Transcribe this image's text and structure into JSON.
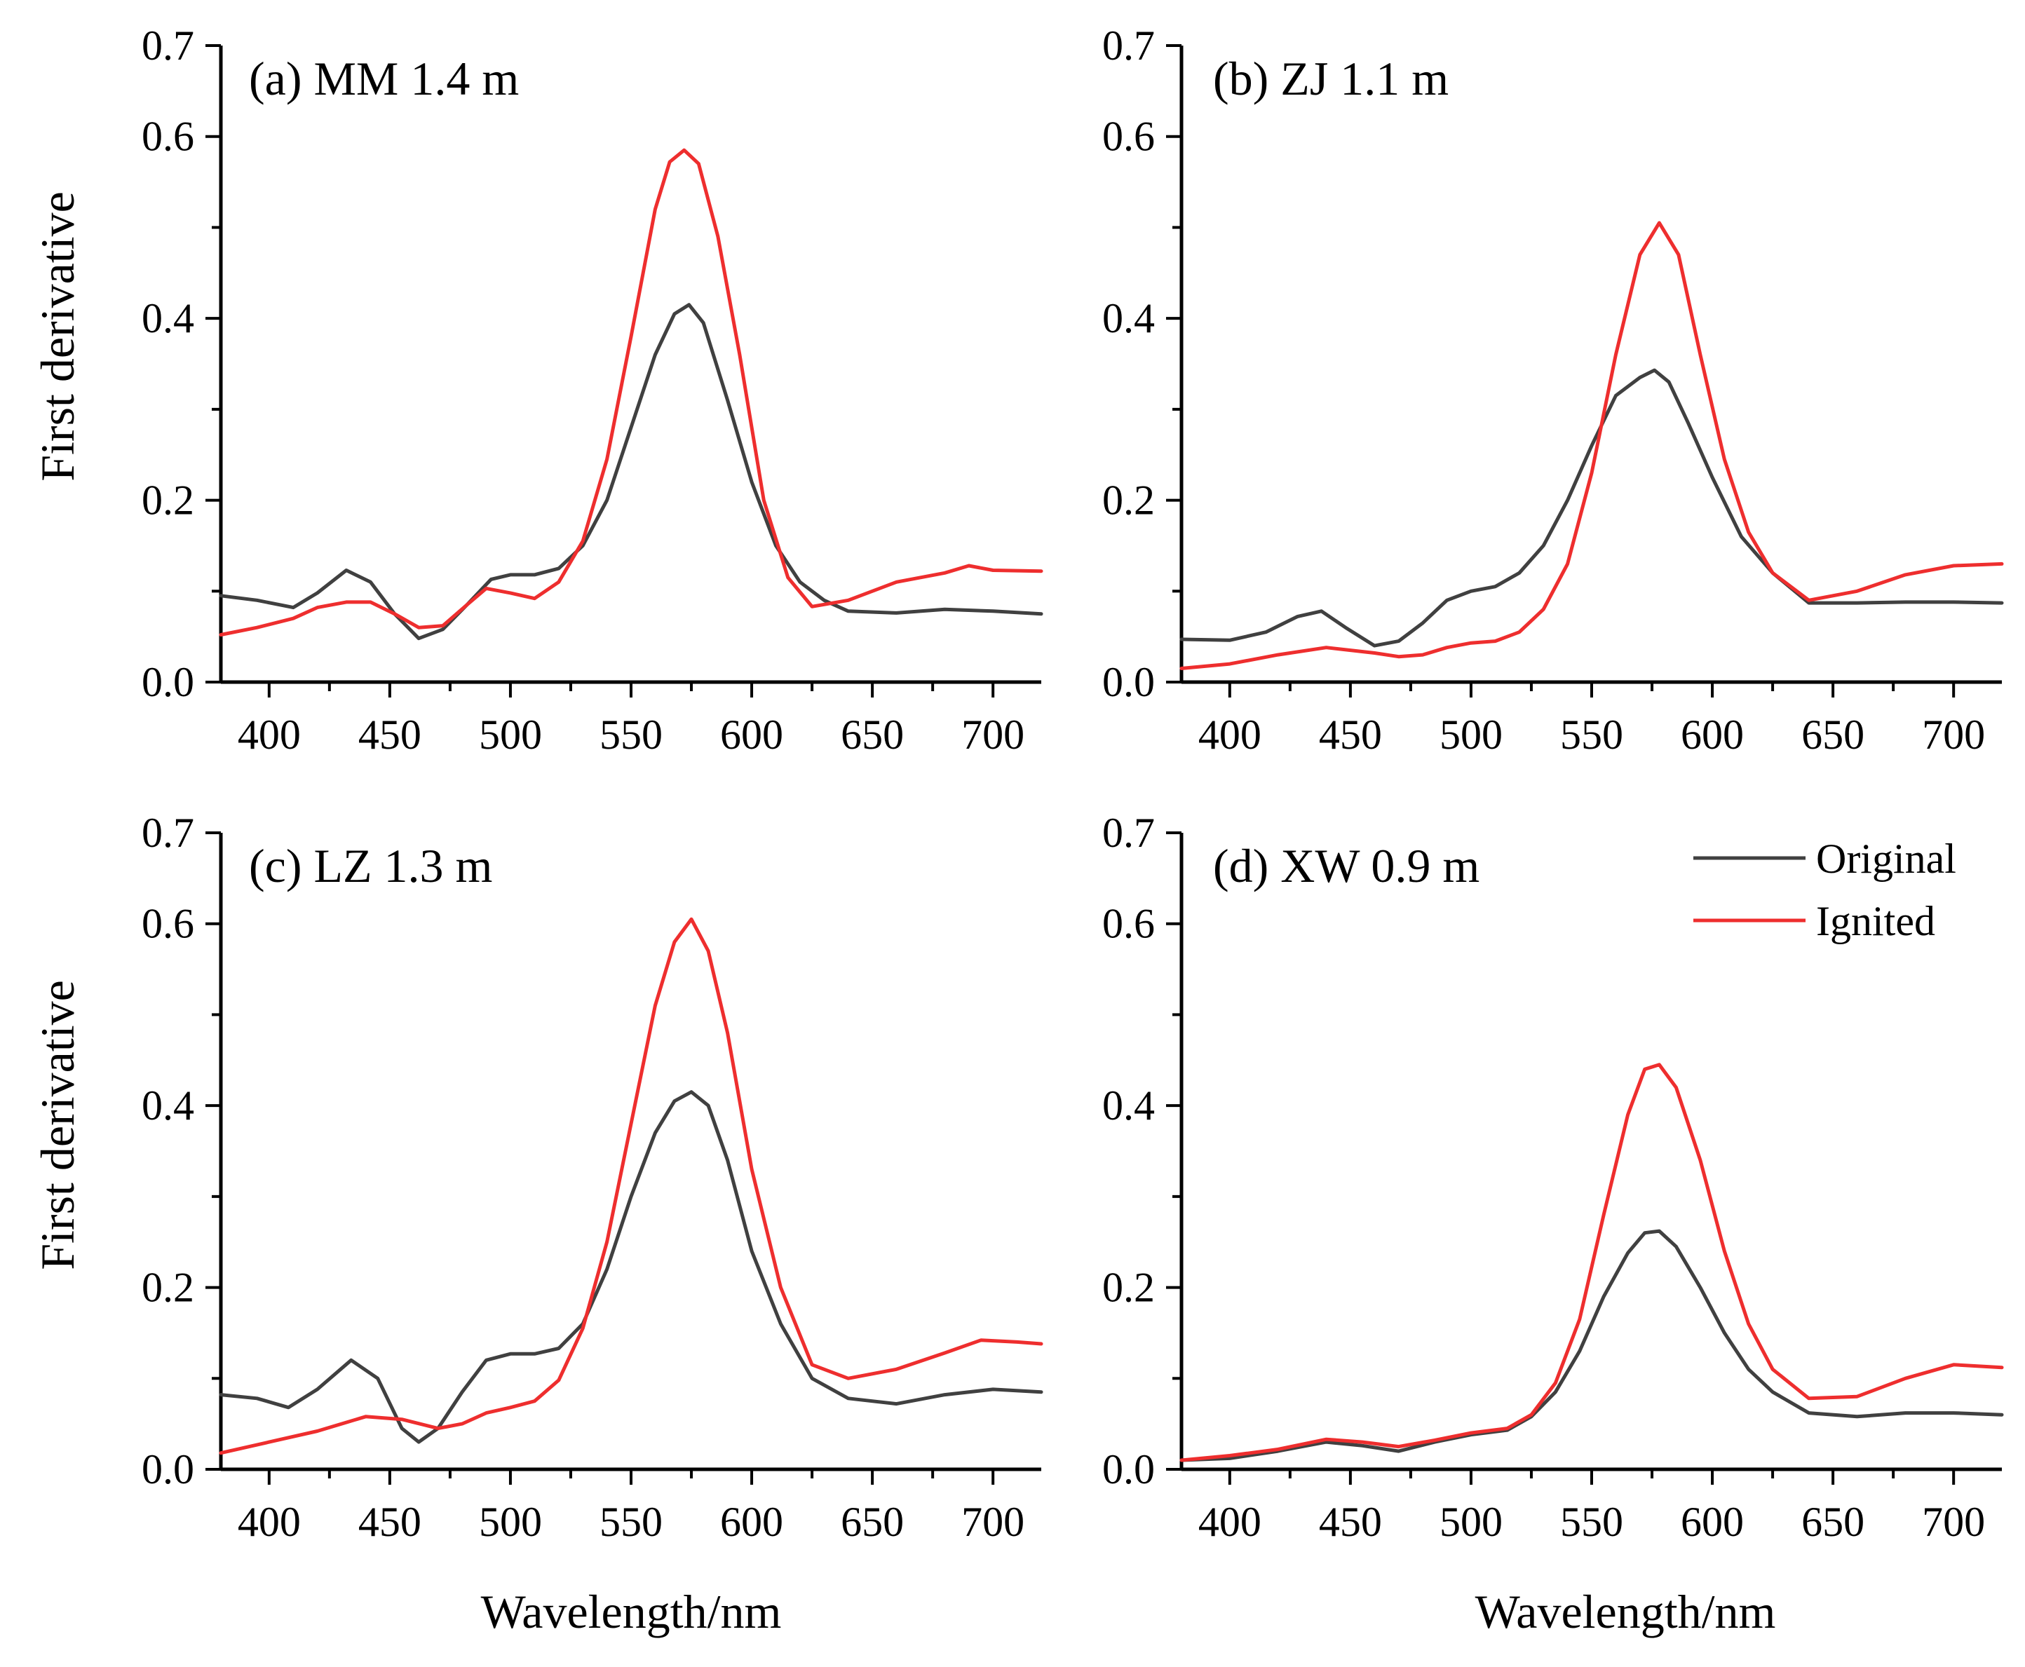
{
  "colors": {
    "original": "#404040",
    "ignited": "#ee2e2e"
  },
  "legend": {
    "original_label": "Original",
    "ignited_label": "Ignited"
  },
  "chart_data": [
    {
      "type": "line",
      "title": "(a) MM 1.4 m",
      "xlabel": "Wavelength/nm",
      "ylabel": "First derivative",
      "xlim": [
        380,
        720
      ],
      "ylim": [
        0,
        0.7
      ],
      "xticks": [
        "400",
        "450",
        "500",
        "550",
        "600",
        "650",
        "700"
      ],
      "yticks": [
        "0.0",
        "0.2",
        "0.4",
        "0.6",
        "0.7"
      ],
      "legend": false,
      "series": [
        {
          "name": "Original",
          "x": [
            380,
            395,
            410,
            420,
            432,
            442,
            452,
            462,
            472,
            482,
            492,
            500,
            510,
            520,
            530,
            540,
            550,
            560,
            568,
            574,
            580,
            590,
            600,
            610,
            620,
            630,
            640,
            660,
            680,
            700,
            720
          ],
          "values": [
            0.095,
            0.09,
            0.082,
            0.098,
            0.123,
            0.11,
            0.075,
            0.048,
            0.058,
            0.085,
            0.113,
            0.118,
            0.118,
            0.125,
            0.15,
            0.2,
            0.28,
            0.36,
            0.405,
            0.415,
            0.395,
            0.31,
            0.22,
            0.15,
            0.11,
            0.09,
            0.078,
            0.076,
            0.08,
            0.078,
            0.075
          ]
        },
        {
          "name": "Ignited",
          "x": [
            380,
            395,
            410,
            420,
            432,
            442,
            452,
            462,
            472,
            482,
            490,
            500,
            510,
            520,
            530,
            540,
            550,
            560,
            566,
            572,
            578,
            586,
            595,
            605,
            615,
            625,
            640,
            660,
            680,
            690,
            700,
            720
          ],
          "values": [
            0.052,
            0.06,
            0.07,
            0.082,
            0.088,
            0.088,
            0.075,
            0.06,
            0.062,
            0.085,
            0.103,
            0.098,
            0.092,
            0.11,
            0.155,
            0.245,
            0.38,
            0.52,
            0.572,
            0.585,
            0.57,
            0.49,
            0.36,
            0.2,
            0.115,
            0.083,
            0.09,
            0.11,
            0.12,
            0.128,
            0.123,
            0.122
          ]
        }
      ]
    },
    {
      "type": "line",
      "title": "(b) ZJ 1.1 m",
      "xlabel": "Wavelength/nm",
      "ylabel": "",
      "xlim": [
        380,
        720
      ],
      "ylim": [
        0,
        0.7
      ],
      "xticks": [
        "400",
        "450",
        "500",
        "550",
        "600",
        "650",
        "700"
      ],
      "yticks": [
        "0.0",
        "0.2",
        "0.4",
        "0.6",
        "0.7"
      ],
      "legend": false,
      "series": [
        {
          "name": "Original",
          "x": [
            380,
            400,
            415,
            428,
            438,
            448,
            460,
            470,
            480,
            490,
            500,
            510,
            520,
            530,
            540,
            550,
            560,
            570,
            576,
            582,
            590,
            600,
            612,
            625,
            640,
            660,
            680,
            700,
            720
          ],
          "values": [
            0.047,
            0.046,
            0.055,
            0.072,
            0.078,
            0.06,
            0.04,
            0.045,
            0.065,
            0.09,
            0.1,
            0.105,
            0.12,
            0.15,
            0.2,
            0.26,
            0.315,
            0.335,
            0.343,
            0.33,
            0.285,
            0.225,
            0.16,
            0.12,
            0.087,
            0.087,
            0.088,
            0.088,
            0.087
          ]
        },
        {
          "name": "Ignited",
          "x": [
            380,
            400,
            420,
            440,
            460,
            470,
            480,
            490,
            500,
            510,
            520,
            530,
            540,
            550,
            560,
            570,
            578,
            586,
            595,
            605,
            615,
            625,
            640,
            660,
            680,
            700,
            720
          ],
          "values": [
            0.015,
            0.02,
            0.03,
            0.038,
            0.032,
            0.028,
            0.03,
            0.038,
            0.043,
            0.045,
            0.055,
            0.08,
            0.13,
            0.23,
            0.36,
            0.47,
            0.505,
            0.47,
            0.36,
            0.245,
            0.165,
            0.12,
            0.09,
            0.1,
            0.118,
            0.128,
            0.13
          ]
        }
      ]
    },
    {
      "type": "line",
      "title": "(c) LZ 1.3 m",
      "xlabel": "Wavelength/nm",
      "ylabel": "First derivative",
      "xlim": [
        380,
        720
      ],
      "ylim": [
        0,
        0.7
      ],
      "xticks": [
        "400",
        "450",
        "500",
        "550",
        "600",
        "650",
        "700"
      ],
      "yticks": [
        "0.0",
        "0.2",
        "0.4",
        "0.6",
        "0.7"
      ],
      "legend": false,
      "series": [
        {
          "name": "Original",
          "x": [
            380,
            395,
            408,
            420,
            434,
            445,
            455,
            462,
            470,
            480,
            490,
            500,
            510,
            520,
            530,
            540,
            550,
            560,
            568,
            575,
            582,
            590,
            600,
            612,
            625,
            640,
            660,
            680,
            700,
            720
          ],
          "values": [
            0.082,
            0.078,
            0.068,
            0.088,
            0.12,
            0.1,
            0.045,
            0.03,
            0.045,
            0.085,
            0.12,
            0.127,
            0.127,
            0.133,
            0.16,
            0.22,
            0.3,
            0.37,
            0.405,
            0.415,
            0.4,
            0.34,
            0.24,
            0.16,
            0.1,
            0.078,
            0.072,
            0.082,
            0.088,
            0.085
          ]
        },
        {
          "name": "Ignited",
          "x": [
            380,
            400,
            420,
            440,
            455,
            470,
            480,
            490,
            500,
            510,
            520,
            530,
            540,
            550,
            560,
            568,
            575,
            582,
            590,
            600,
            612,
            625,
            640,
            660,
            680,
            695,
            710,
            720
          ],
          "values": [
            0.018,
            0.03,
            0.042,
            0.058,
            0.055,
            0.045,
            0.05,
            0.062,
            0.068,
            0.075,
            0.098,
            0.155,
            0.25,
            0.38,
            0.51,
            0.58,
            0.605,
            0.57,
            0.48,
            0.33,
            0.2,
            0.115,
            0.1,
            0.11,
            0.128,
            0.142,
            0.14,
            0.138
          ]
        }
      ]
    },
    {
      "type": "line",
      "title": "(d) XW 0.9 m",
      "xlabel": "Wavelength/nm",
      "ylabel": "",
      "xlim": [
        380,
        720
      ],
      "ylim": [
        0,
        0.7
      ],
      "xticks": [
        "400",
        "450",
        "500",
        "550",
        "600",
        "650",
        "700"
      ],
      "yticks": [
        "0.0",
        "0.2",
        "0.4",
        "0.6",
        "0.7"
      ],
      "legend": true,
      "series": [
        {
          "name": "Original",
          "x": [
            380,
            400,
            420,
            440,
            455,
            470,
            485,
            500,
            515,
            525,
            535,
            545,
            555,
            565,
            572,
            578,
            585,
            595,
            605,
            615,
            625,
            640,
            660,
            680,
            700,
            720
          ],
          "values": [
            0.01,
            0.012,
            0.02,
            0.03,
            0.026,
            0.02,
            0.03,
            0.038,
            0.043,
            0.058,
            0.085,
            0.13,
            0.19,
            0.238,
            0.26,
            0.262,
            0.245,
            0.2,
            0.15,
            0.11,
            0.085,
            0.062,
            0.058,
            0.062,
            0.062,
            0.06
          ]
        },
        {
          "name": "Ignited",
          "x": [
            380,
            400,
            420,
            440,
            455,
            470,
            485,
            500,
            515,
            525,
            535,
            545,
            555,
            565,
            572,
            578,
            585,
            595,
            605,
            615,
            625,
            640,
            660,
            680,
            700,
            720
          ],
          "values": [
            0.01,
            0.015,
            0.022,
            0.033,
            0.03,
            0.025,
            0.032,
            0.04,
            0.045,
            0.06,
            0.095,
            0.165,
            0.28,
            0.39,
            0.44,
            0.445,
            0.42,
            0.34,
            0.24,
            0.16,
            0.11,
            0.078,
            0.08,
            0.1,
            0.115,
            0.112
          ]
        }
      ]
    }
  ]
}
